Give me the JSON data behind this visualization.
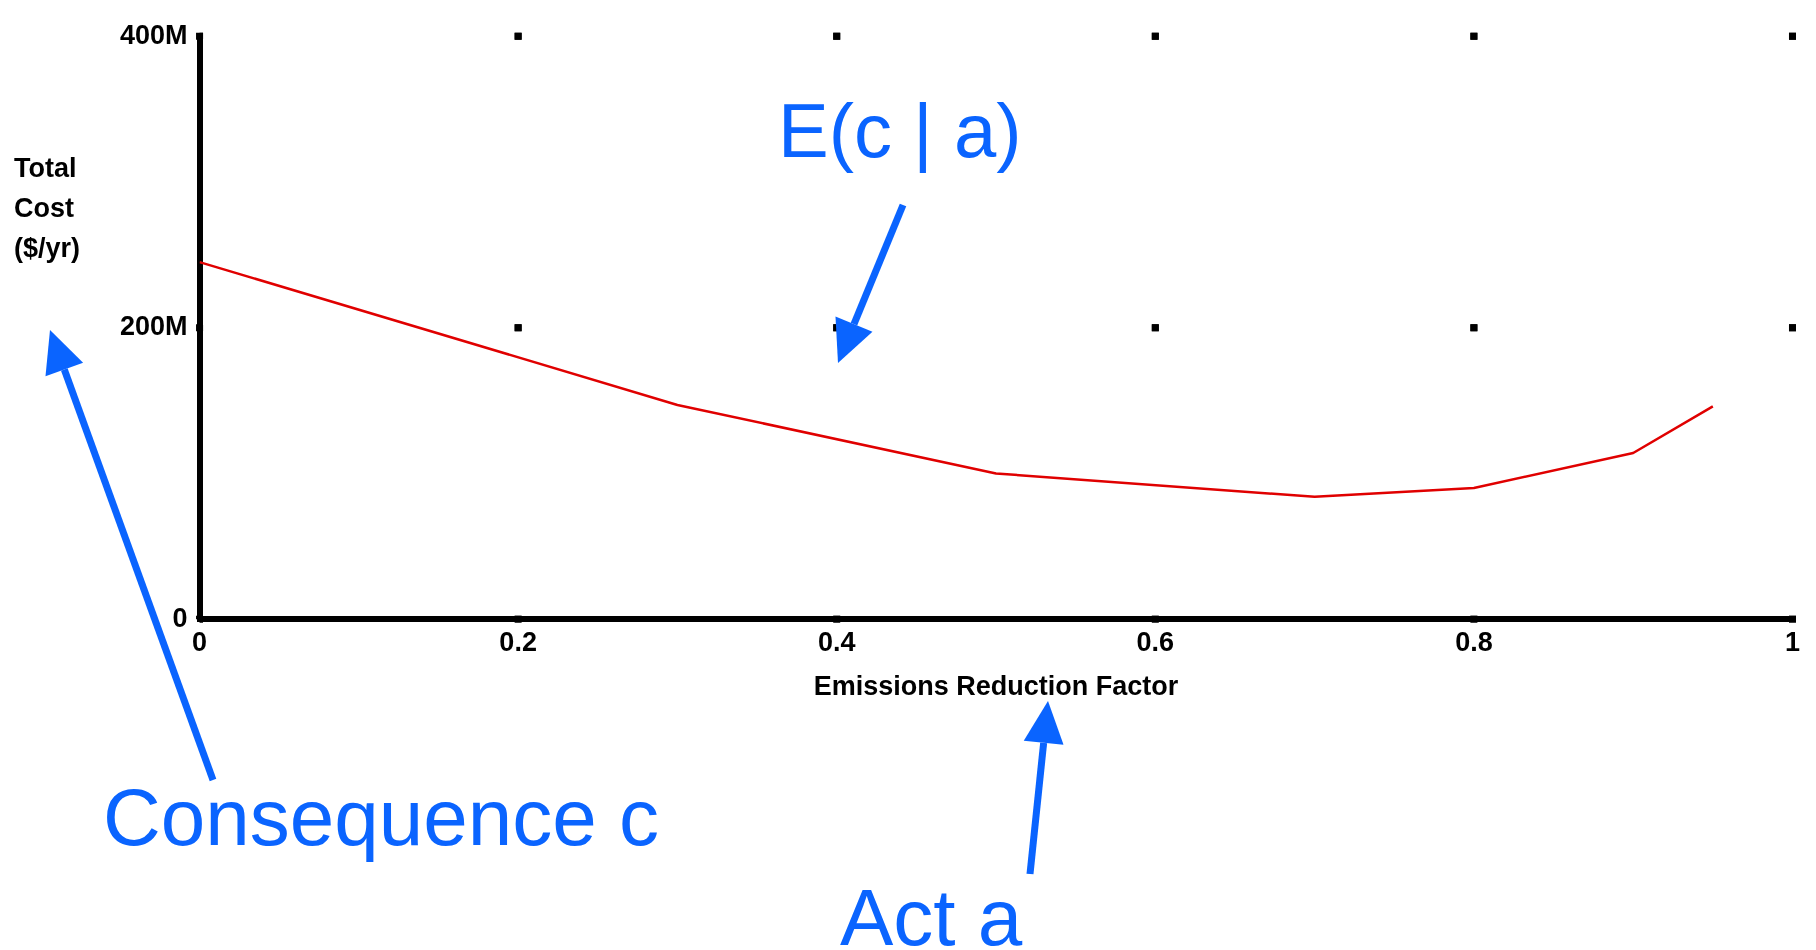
{
  "chart_data": {
    "type": "line",
    "xlabel": "Emissions Reduction Factor",
    "ylabel": "Total Cost ($/yr)",
    "x": [
      0,
      0.3,
      0.5,
      0.7,
      0.8,
      0.9,
      0.95
    ],
    "series": [
      {
        "color": "#e00000",
        "values": [
          245000000,
          147000000,
          100000000,
          84000000,
          90000000,
          114000000,
          146000000
        ]
      }
    ],
    "xlim": [
      0,
      1
    ],
    "xticks": [
      0,
      0.2,
      0.4,
      0.6,
      0.8,
      1
    ],
    "ylim": [
      0,
      400000000
    ],
    "yticks": [
      {
        "value": 0,
        "label": "0"
      },
      {
        "value": 200000000,
        "label": "200M"
      },
      {
        "value": 400000000,
        "label": "400M"
      }
    ],
    "grid": true,
    "legend": false,
    "marker": "none",
    "line_style": "solid",
    "annotations": [
      "E(c | a)",
      "Consequence c",
      "Act a"
    ]
  }
}
